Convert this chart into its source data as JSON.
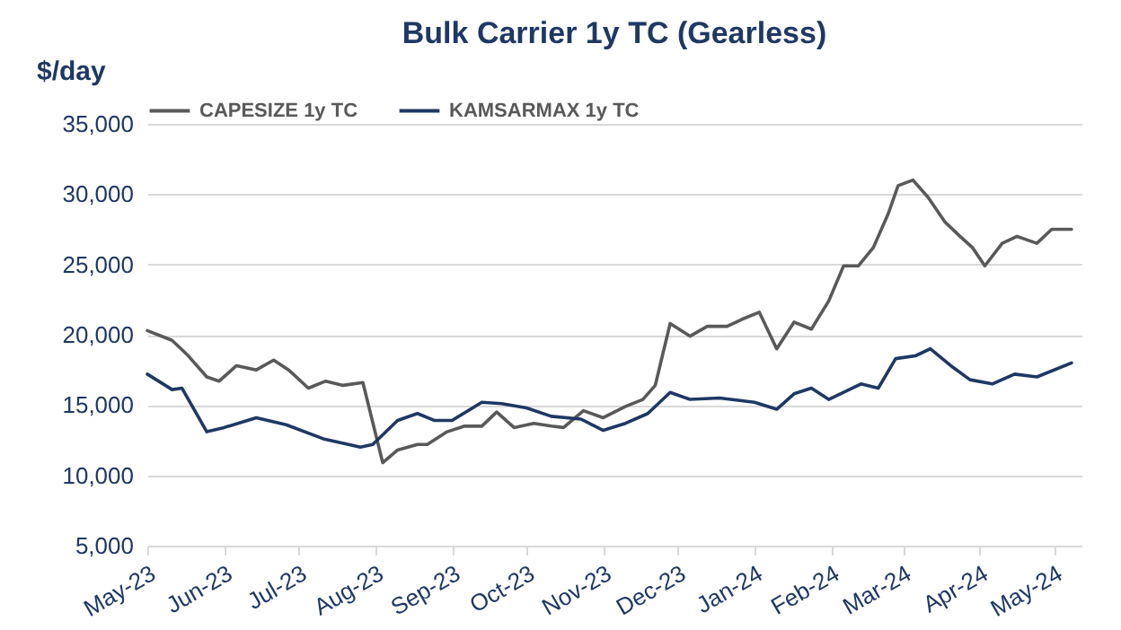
{
  "chart_data": {
    "type": "line",
    "title": "Bulk Carrier 1y TC (Gearless)",
    "ylabel": "$/day",
    "series": [
      {
        "name": "CAPESIZE 1y TC",
        "color": "#595959",
        "x": [
          "2023-05-01",
          "2023-05-11",
          "2023-05-17",
          "2023-05-25",
          "2023-05-30",
          "2023-06-06",
          "2023-06-14",
          "2023-06-21",
          "2023-06-27",
          "2023-07-05",
          "2023-07-12",
          "2023-07-19",
          "2023-07-27",
          "2023-08-04",
          "2023-08-10",
          "2023-08-18",
          "2023-08-22",
          "2023-08-30",
          "2023-09-06",
          "2023-09-13",
          "2023-09-19",
          "2023-09-26",
          "2023-10-04",
          "2023-10-11",
          "2023-10-16",
          "2023-10-24",
          "2023-11-01",
          "2023-11-10",
          "2023-11-17",
          "2023-11-22",
          "2023-11-28",
          "2023-12-06",
          "2023-12-13",
          "2023-12-21",
          "2023-12-27",
          "2024-01-03",
          "2024-01-10",
          "2024-01-17",
          "2024-01-24",
          "2024-01-31",
          "2024-02-06",
          "2024-02-12",
          "2024-02-18",
          "2024-02-24",
          "2024-02-28",
          "2024-03-05",
          "2024-03-11",
          "2024-03-18",
          "2024-03-24",
          "2024-03-29",
          "2024-04-03",
          "2024-04-10",
          "2024-04-16",
          "2024-04-24",
          "2024-04-30",
          "2024-05-08"
        ],
        "values": [
          20300,
          19600,
          18600,
          17000,
          16700,
          17800,
          17500,
          18200,
          17500,
          16200,
          16700,
          16400,
          16600,
          10900,
          11800,
          12200,
          12200,
          13100,
          13500,
          13500,
          14500,
          13400,
          13700,
          13500,
          13400,
          14600,
          14100,
          14900,
          15400,
          16400,
          20800,
          19900,
          20600,
          20600,
          21100,
          21600,
          19000,
          20900,
          20400,
          22400,
          24900,
          24900,
          26200,
          28600,
          30600,
          31000,
          29800,
          28000,
          27000,
          26200,
          24900,
          26500,
          27000,
          26500,
          27500,
          27500
        ]
      },
      {
        "name": "KAMSARMAX 1y TC",
        "color": "#1f3864",
        "x": [
          "2023-05-01",
          "2023-05-11",
          "2023-05-15",
          "2023-05-25",
          "2023-06-01",
          "2023-06-14",
          "2023-06-26",
          "2023-07-11",
          "2023-07-26",
          "2023-07-31",
          "2023-08-10",
          "2023-08-18",
          "2023-08-25",
          "2023-09-01",
          "2023-09-13",
          "2023-09-21",
          "2023-10-01",
          "2023-10-11",
          "2023-10-23",
          "2023-11-01",
          "2023-11-10",
          "2023-11-19",
          "2023-11-28",
          "2023-12-06",
          "2023-12-18",
          "2024-01-01",
          "2024-01-10",
          "2024-01-17",
          "2024-01-24",
          "2024-01-31",
          "2024-02-13",
          "2024-02-20",
          "2024-02-27",
          "2024-03-06",
          "2024-03-12",
          "2024-03-21",
          "2024-03-28",
          "2024-04-06",
          "2024-04-15",
          "2024-04-24",
          "2024-05-08"
        ],
        "values": [
          17200,
          16100,
          16200,
          13100,
          13400,
          14100,
          13600,
          12600,
          12000,
          12200,
          13900,
          14400,
          13900,
          13900,
          15200,
          15100,
          14800,
          14200,
          14000,
          13200,
          13700,
          14400,
          15900,
          15400,
          15500,
          15200,
          14700,
          15800,
          16200,
          15400,
          16500,
          16200,
          18300,
          18500,
          19000,
          17700,
          16800,
          16500,
          17200,
          17000,
          18000
        ]
      }
    ],
    "xlim": [
      "2023-05-01",
      "2024-05-12"
    ],
    "xticks": [
      {
        "value": "2023-05-01",
        "label": "May-23"
      },
      {
        "value": "2023-06-01",
        "label": "Jun-23"
      },
      {
        "value": "2023-07-01",
        "label": "Jul-23"
      },
      {
        "value": "2023-08-01",
        "label": "Aug-23"
      },
      {
        "value": "2023-09-01",
        "label": "Sep-23"
      },
      {
        "value": "2023-10-01",
        "label": "Oct-23"
      },
      {
        "value": "2023-11-01",
        "label": "Nov-23"
      },
      {
        "value": "2023-12-01",
        "label": "Dec-23"
      },
      {
        "value": "2024-01-01",
        "label": "Jan-24"
      },
      {
        "value": "2024-02-01",
        "label": "Feb-24"
      },
      {
        "value": "2024-03-01",
        "label": "Mar-24"
      },
      {
        "value": "2024-04-01",
        "label": "Apr-24"
      },
      {
        "value": "2024-05-01",
        "label": "May-24"
      }
    ],
    "ylim": [
      5000,
      35000
    ],
    "yticks": [
      {
        "value": 5000,
        "label": "5,000"
      },
      {
        "value": 10000,
        "label": "10,000"
      },
      {
        "value": 15000,
        "label": "15,000"
      },
      {
        "value": 20000,
        "label": "20,000"
      },
      {
        "value": 25000,
        "label": "25,000"
      },
      {
        "value": 30000,
        "label": "30,000"
      },
      {
        "value": 35000,
        "label": "35,000"
      }
    ],
    "grid": "y",
    "legend": "top",
    "marker": "none",
    "line_style": "solid"
  }
}
